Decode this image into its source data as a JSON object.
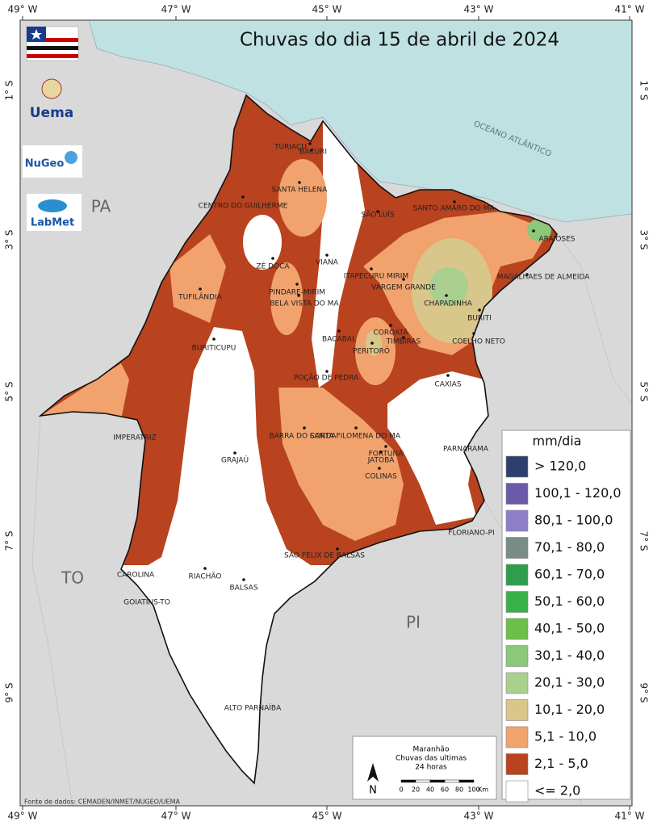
{
  "title": "Chuvas do dia 15 de abril de 2024",
  "coordinates": {
    "longitudes": [
      "49° W",
      "47° W",
      "45° W",
      "43° W",
      "41° W"
    ],
    "latitudes": [
      "1° S",
      "3° S",
      "5° S",
      "7° S",
      "9° S"
    ]
  },
  "states": [
    "PA",
    "TO",
    "PI"
  ],
  "ocean_label": "OCEANO ATLÂNTICO",
  "cities": [
    "TURIAÇU",
    "BACURI",
    "SANTA HELENA",
    "CENTRO DO GUILHERME",
    "SÃO LUÍS",
    "SANTO AMARO DO MA",
    "ARAIOSES",
    "ZÉ DOCA",
    "VIANA",
    "ITAPECURU MIRIM",
    "VARGEM GRANDE",
    "MAGALHAES DE ALMEIDA",
    "PINDARÉ-MIRIM",
    "BELA VISTA DO MA",
    "TUFILÂNDIA",
    "CHAPADINHA",
    "BURITI",
    "COROATÁ",
    "BACABAL",
    "TIMBIRAS",
    "PERITORÓ",
    "COELHO NETO",
    "BURITICUPU",
    "POÇÃO DE PEDRA",
    "CAXIAS",
    "IMPERATRIZ",
    "BARRA DO CORDA",
    "SANTA FILOMENA DO MA",
    "FORTUNA",
    "JATOBÁ",
    "COLINAS",
    "PARNARAMA",
    "GRAJAÚ",
    "FLORIANO-PI",
    "SÃO FELIX DE BALSAS",
    "CAROLINA",
    "RIACHÃO",
    "BALSAS",
    "GOIATINS-TO",
    "ALTO PARNAÍBA"
  ],
  "legend": {
    "title": "mm/dia",
    "items": [
      {
        "label": "> 120,0",
        "color": "#2e3f6e"
      },
      {
        "label": "100,1 - 120,0",
        "color": "#6a5aa8"
      },
      {
        "label": "80,1 - 100,0",
        "color": "#8d7fc8"
      },
      {
        "label": "70,1 - 80,0",
        "color": "#7a8c88"
      },
      {
        "label": "60,1 - 70,0",
        "color": "#2e9e4e"
      },
      {
        "label": "50,1 - 60,0",
        "color": "#38b14a"
      },
      {
        "label": "40,1 - 50,0",
        "color": "#6cc04a"
      },
      {
        "label": "30,1 - 40,0",
        "color": "#8cc77a"
      },
      {
        "label": "20,1 - 30,0",
        "color": "#a9d08e"
      },
      {
        "label": "10,1 - 20,0",
        "color": "#d9c68a"
      },
      {
        "label": "5,1 - 10,0",
        "color": "#f1a26d"
      },
      {
        "label": "2,1 - 5,0",
        "color": "#b9421f"
      },
      {
        "label": "<= 2,0",
        "color": "#ffffff"
      }
    ]
  },
  "scale_box": {
    "lines": [
      "Maranhão",
      "Chuvas das ultimas",
      "24 horas"
    ],
    "north": "N",
    "ticks": [
      0,
      20,
      40,
      60,
      80,
      100
    ],
    "unit": "Km"
  },
  "source": "Fonte de dados: CEMADEN/INMET/NUGEO/UEMA",
  "logos": {
    "uema": "Uema",
    "nugeo": "NuGeo",
    "labmet": "LabMet"
  }
}
